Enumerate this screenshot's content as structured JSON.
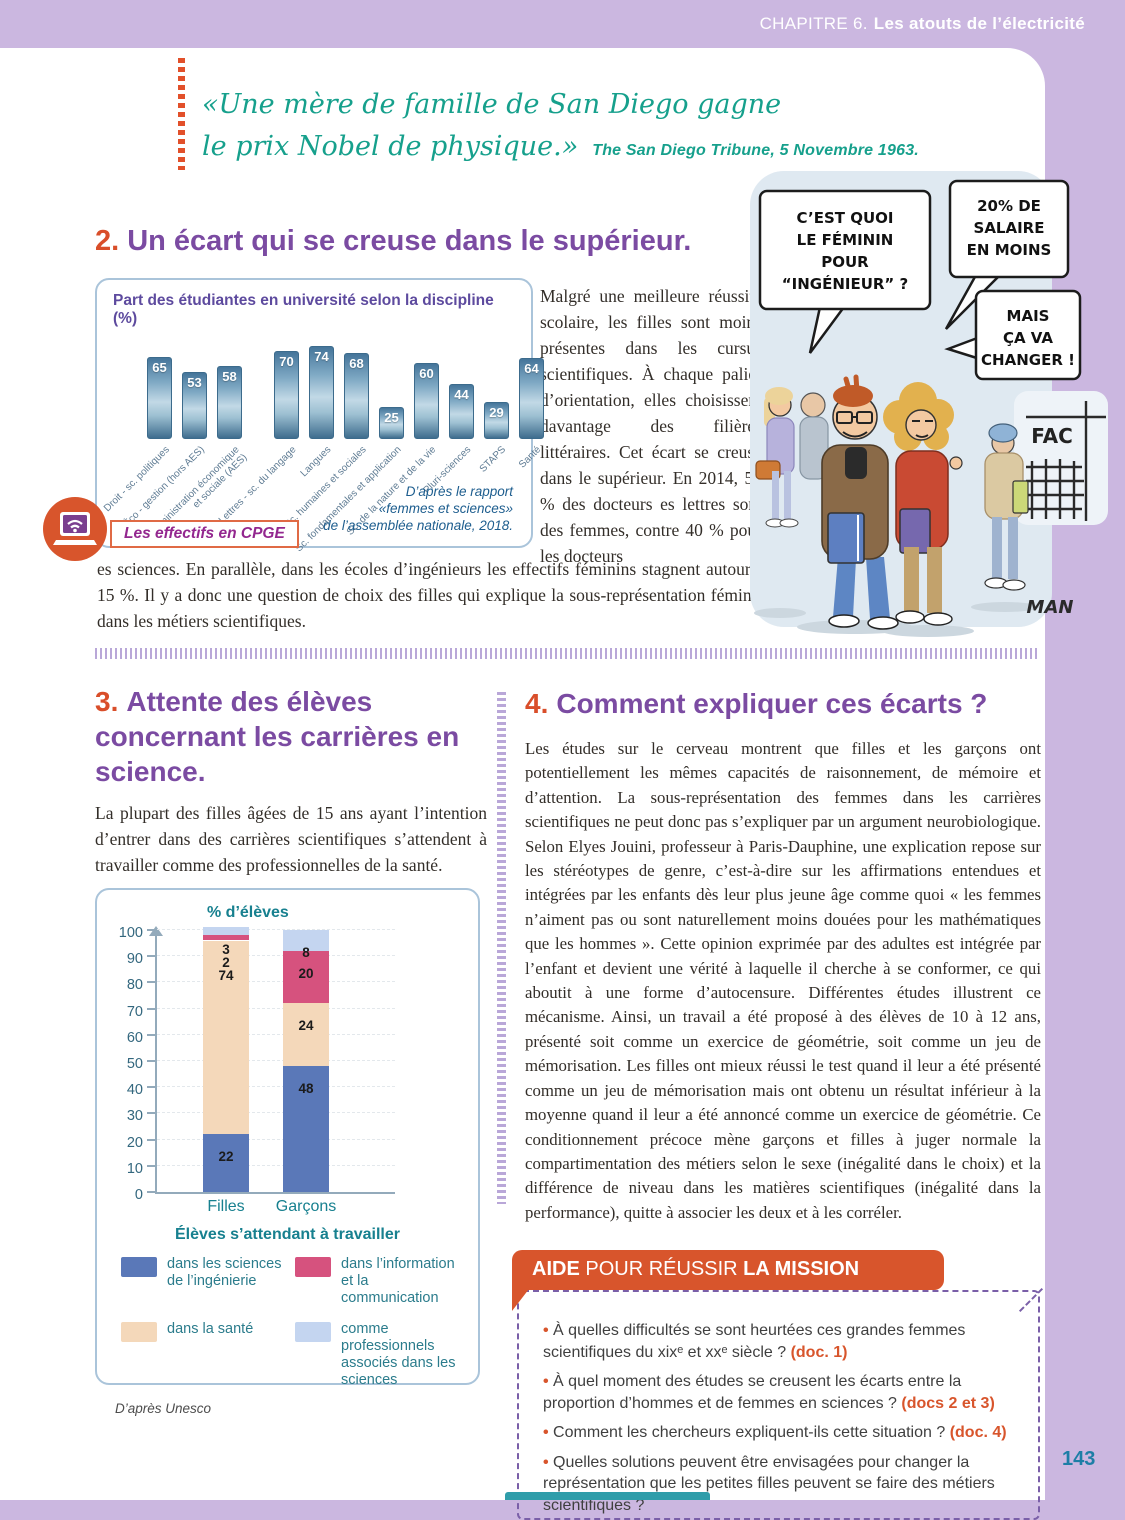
{
  "colors": {
    "band_purple": "#cbb7e0",
    "heading_purple": "#7b4ba2",
    "heading_number_orange": "#d94e2a",
    "quote_teal": "#16a08c",
    "aide_orange": "#d8552c",
    "page_number_teal": "#1d7ea6"
  },
  "header": {
    "chapter": "CHAPITRE 6.",
    "chapter_title": "Les atouts de l’électricité"
  },
  "quote": {
    "line1": "«Une mère de famille de San Diego gagne",
    "line2": "le prix Nobel de physique.»",
    "attribution": "The San Diego Tribune, 5 Novembre 1963."
  },
  "section2": {
    "number": "2.",
    "title": "Un écart qui se creuse dans le supérieur.",
    "col_text": "Malgré une meilleure réussite scolaire, les filles sont moins présentes dans les cursus scientifiques. À chaque palier d’orientation, elles choisissent davantage des filières littéraires. Cet écart se creuse dans le supérieur. En 2014, 59 % des docteurs es lettres sont des femmes, contre 40 % pour les docteurs",
    "full_text": "es sciences. En parallèle, dans les écoles d’ingénieurs les effectifs féminins stagnent autour de 15 %. Il y a donc une question de choix des filles qui explique la sous-représentation féminine dans les métiers scientifiques."
  },
  "cpge_link": {
    "label": "Les effectifs en CPGE"
  },
  "cartoon": {
    "bubbles": [
      {
        "lines": [
          "C’EST QUOI",
          "LE FÉMININ",
          "POUR",
          "“INGÉNIEUR” ?"
        ]
      },
      {
        "lines": [
          "20% DE",
          "SALAIRE",
          "EN MOINS"
        ]
      },
      {
        "lines": [
          "MAIS",
          "ÇA VA",
          "CHANGER !"
        ]
      }
    ],
    "sign": "FAC",
    "signature": "MAN"
  },
  "section3": {
    "number": "3.",
    "title": "Attente des élèves concernant les carrières en science.",
    "text": "La plupart des filles âgées de 15 ans ayant l’intention d’entrer dans des carrières scientifiques s’attendent à travailler comme des professionnelles de la santé."
  },
  "section4": {
    "number": "4.",
    "title": "Comment expliquer ces écarts ?",
    "text": "Les études sur le cerveau montrent que filles et les garçons ont potentiellement les mêmes capacités de raisonnement, de mémoire et d’attention. La sous-représentation des femmes dans les carrières scientifiques ne peut donc pas s’expliquer par un argument neurobiologique. Selon Elyes Jouini, professeur à Paris-Dauphine, une explication repose sur les stéréotypes de genre, c’est-à-dire sur les affirmations entendues et intégrées par les enfants dès leur plus jeune âge comme quoi « les femmes n’aiment pas ou sont naturellement moins douées pour les mathématiques que les hommes ». Cette opinion exprimée par des adultes est intégrée par l’enfant et devient une vérité à laquelle il cherche à se conformer, ce qui aboutit à une forme d’autocensure. Différentes études illustrent ce mécanisme. Ainsi, un travail a été proposé à des élèves de 10 à 12 ans, présenté soit comme un exercice de géométrie, soit comme un jeu de mémorisation. Les filles ont mieux réussi le test quand il leur a été présenté comme un jeu de mémorisation mais ont obtenu un résultat inférieur à la moyenne quand il leur a été annoncé comme un exercice de géométrie. Ce conditionnement précoce mène garçons et filles à juger normale la compartimentation des métiers selon le sexe (inégalité dans le choix) et la différence de niveau dans les matières scientifiques (inégalité dans la performance), quitte à associer les deux et à les corréler."
  },
  "aide": {
    "title_strong1": "AIDE",
    "title_mid": " POUR RÉUSSIR ",
    "title_strong2": "LA MISSION",
    "items": [
      {
        "text": "À quelles difficultés se sont heurtées ces grandes femmes scientifiques du xixᵉ et xxᵉ siècle ?",
        "ref": "(doc. 1)"
      },
      {
        "text": "À quel moment des études se creusent les écarts entre la proportion d’hommes et de femmes en sciences ?",
        "ref": "(docs 2 et 3)"
      },
      {
        "text": "Comment les chercheurs expliquent-ils cette situation ?",
        "ref": "(doc. 4)"
      },
      {
        "text": "Quelles solutions peuvent être envisagées pour changer la représentation que les petites filles peuvent se faire des métiers scientifiques ?",
        "ref": ""
      }
    ]
  },
  "page_number": "143",
  "chart_data": [
    {
      "type": "bar",
      "title": "Part des étudiantes en université selon la discipline (%)",
      "categories": [
        "Droit - sc. politiques",
        "Sc. Éco - gestion (hors AES)",
        "Administration économique\net sociale (AES)",
        "Lettres - sc. du langage",
        "Langues",
        "Sc. humaines et sociales",
        "Sc. fondamentales et application",
        "Sc. de la nature et de la vie",
        "Pluri-sciences",
        "STAPS",
        "Santé"
      ],
      "values": [
        65,
        53,
        58,
        70,
        74,
        68,
        25,
        60,
        44,
        29,
        64
      ],
      "group_break_after": 2,
      "ylim": [
        0,
        80
      ],
      "bar_color": "#4e7e9e",
      "source": [
        "D’après le rapport",
        "«femmes et sciences»",
        "de l’assemblée nationale, 2018."
      ]
    },
    {
      "type": "stacked-bar",
      "ylabel": "% d’élèves",
      "ylim": [
        0,
        100
      ],
      "ytick_step": 10,
      "categories": [
        "Filles",
        "Garçons"
      ],
      "series": [
        {
          "name": "dans les sciences de l’ingénierie",
          "color": "#5a78b8",
          "values": [
            22,
            48
          ]
        },
        {
          "name": "dans la santé",
          "color": "#f4d8ba",
          "values": [
            74,
            24
          ]
        },
        {
          "name": "dans l’information et la communication",
          "color": "#d6527e",
          "values": [
            2,
            20
          ]
        },
        {
          "name": "comme professionnels associés dans les sciences",
          "color": "#c4d5f0",
          "values": [
            3,
            8
          ]
        }
      ],
      "legend_title": "Élèves s’attendant à travailler",
      "legend": [
        {
          "color": "#5a78b8",
          "label": "dans les sciences\nde l’ingénierie"
        },
        {
          "color": "#d6527e",
          "label": "dans l’information\net la communication"
        },
        {
          "color": "#f4d8ba",
          "label": "dans la santé"
        },
        {
          "color": "#c4d5f0",
          "label": "comme professionnels\nassociés dans les sciences"
        }
      ],
      "grid": true,
      "legend_position": "bottom",
      "source": "D’après Unesco"
    }
  ]
}
